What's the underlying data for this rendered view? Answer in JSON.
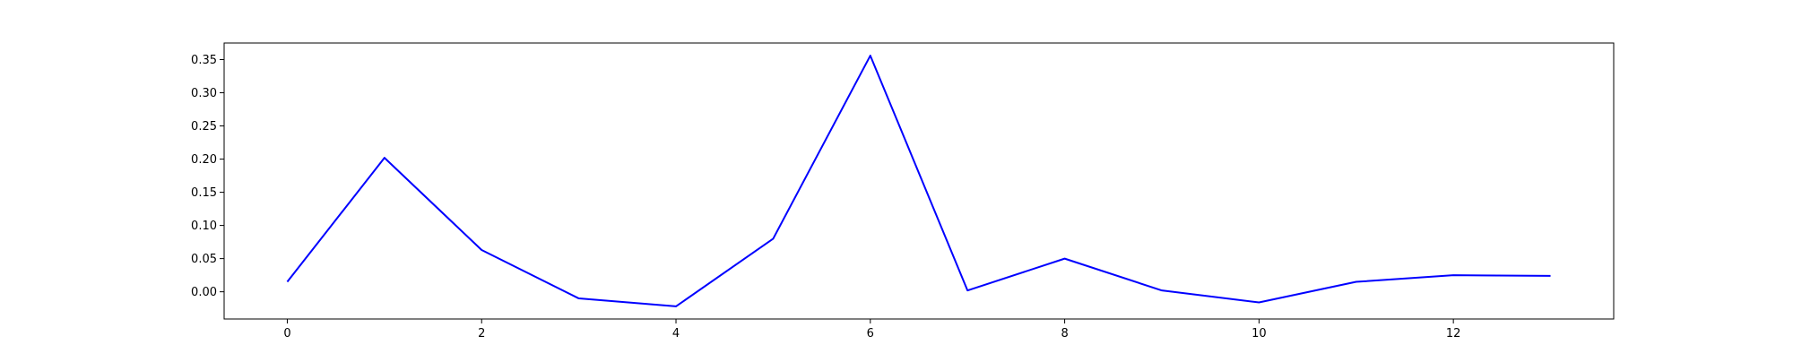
{
  "chart_data": {
    "type": "line",
    "title": "",
    "xlabel": "",
    "ylabel": "",
    "x": [
      0,
      1,
      2,
      3,
      4,
      5,
      6,
      7,
      8,
      9,
      10,
      11,
      12,
      13
    ],
    "series": [
      {
        "values": [
          0.015,
          0.202,
          0.063,
          -0.01,
          -0.022,
          0.08,
          0.356,
          0.002,
          0.05,
          0.002,
          -0.016,
          0.015,
          0.025,
          0.024
        ]
      }
    ],
    "xlim": [
      -0.65,
      13.65
    ],
    "ylim": [
      -0.041,
      0.375
    ],
    "xticks": [
      0,
      2,
      4,
      6,
      8,
      10,
      12
    ],
    "xtick_labels": [
      "0",
      "2",
      "4",
      "6",
      "8",
      "10",
      "12"
    ],
    "yticks": [
      0.0,
      0.05,
      0.1,
      0.15,
      0.2,
      0.25,
      0.3,
      0.35
    ],
    "ytick_labels": [
      "0.00",
      "0.05",
      "0.10",
      "0.15",
      "0.20",
      "0.25",
      "0.30",
      "0.35"
    ],
    "grid": false,
    "legend": "none",
    "colors": {
      "line": "#0000ff",
      "axes": "#000000",
      "background": "#ffffff"
    }
  }
}
